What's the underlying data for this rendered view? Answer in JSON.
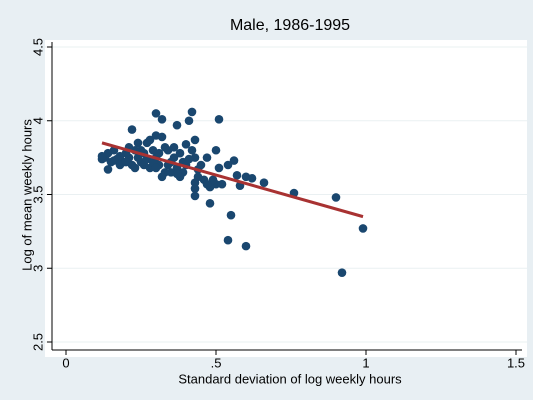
{
  "chart_data": {
    "type": "scatter",
    "title": "Male, 1986-1995",
    "x_label": "Standard deviation of log weekly hours",
    "y_label": "Log of mean weekly hours",
    "xlim": [
      0,
      1.5
    ],
    "ylim": [
      2.5,
      4.5
    ],
    "xticks": [
      0,
      {
        "value": 0.5,
        "label": ".5"
      },
      1,
      1.5
    ],
    "yticks": [
      2.5,
      3,
      3.5,
      4,
      4.5
    ],
    "grid": true,
    "series": [
      {
        "type": "scatter",
        "color": "#1a476f",
        "x": [
          0.3,
          0.32,
          0.42,
          0.41,
          0.51,
          0.37,
          0.22,
          0.3,
          0.32,
          0.47,
          0.5,
          0.92,
          0.99,
          0.6,
          0.54,
          0.55,
          0.48,
          0.76,
          0.9,
          0.66,
          0.6,
          0.57,
          0.56,
          0.54,
          0.51,
          0.5,
          0.48,
          0.49,
          0.52,
          0.46,
          0.43,
          0.43,
          0.43,
          0.44,
          0.45,
          0.43,
          0.42,
          0.4,
          0.43,
          0.4,
          0.39,
          0.38,
          0.37,
          0.36,
          0.35,
          0.34,
          0.33,
          0.32,
          0.31,
          0.3,
          0.29,
          0.28,
          0.27,
          0.26,
          0.25,
          0.24,
          0.23,
          0.22,
          0.21,
          0.2,
          0.19,
          0.18,
          0.17,
          0.16,
          0.15,
          0.14,
          0.13,
          0.12,
          0.12,
          0.14,
          0.16,
          0.18,
          0.2,
          0.21,
          0.23,
          0.24,
          0.25,
          0.26,
          0.27,
          0.28,
          0.29,
          0.3,
          0.31,
          0.33,
          0.34,
          0.35,
          0.36,
          0.37,
          0.38,
          0.39,
          0.41,
          0.44,
          0.47,
          0.58,
          0.62
        ],
        "values": [
          4.05,
          4.01,
          4.06,
          4.0,
          4.01,
          3.97,
          3.94,
          3.9,
          3.89,
          3.75,
          3.8,
          2.97,
          3.27,
          3.15,
          3.19,
          3.36,
          3.44,
          3.51,
          3.48,
          3.58,
          3.62,
          3.63,
          3.73,
          3.7,
          3.68,
          3.57,
          3.55,
          3.6,
          3.57,
          3.6,
          3.58,
          3.54,
          3.49,
          3.67,
          3.7,
          3.75,
          3.8,
          3.84,
          3.87,
          3.7,
          3.65,
          3.62,
          3.68,
          3.75,
          3.72,
          3.8,
          3.65,
          3.62,
          3.7,
          3.75,
          3.8,
          3.87,
          3.85,
          3.78,
          3.72,
          3.75,
          3.8,
          3.7,
          3.75,
          3.78,
          3.72,
          3.76,
          3.74,
          3.8,
          3.72,
          3.67,
          3.75,
          3.74,
          3.76,
          3.78,
          3.73,
          3.7,
          3.72,
          3.82,
          3.68,
          3.85,
          3.8,
          3.7,
          3.74,
          3.68,
          3.72,
          3.68,
          3.78,
          3.82,
          3.7,
          3.65,
          3.82,
          3.64,
          3.78,
          3.72,
          3.74,
          3.62,
          3.57,
          3.56,
          3.61
        ]
      },
      {
        "type": "line",
        "color": "#a83232",
        "x": [
          0.12,
          0.99
        ],
        "values": [
          3.85,
          3.35
        ]
      }
    ]
  }
}
